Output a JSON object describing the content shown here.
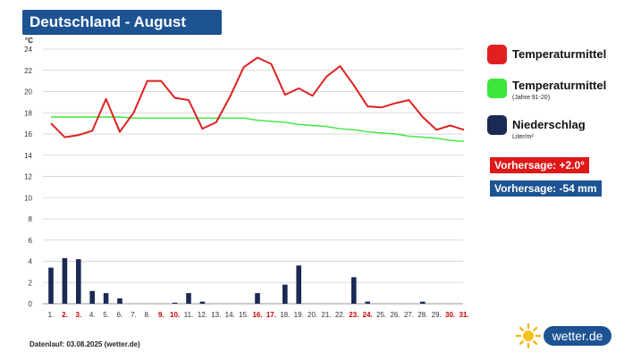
{
  "header": {
    "title": "Deutschland - August"
  },
  "legend": {
    "temp_label": "Temperaturmittel",
    "climate_label": "Temperaturmittel",
    "climate_sub": "(Jahre 91-20)",
    "precip_label": "Niederschlag",
    "precip_sub": "Liter/m²"
  },
  "forecast": {
    "temp": "Vorhersage: +2.0°",
    "precip": "Vorhersage: -54 mm"
  },
  "footer": {
    "text": "Datenlauf: 03.08.2025 (wetter.de)"
  },
  "brand": {
    "name": "wetter.de"
  },
  "colors": {
    "temperature": "#e02020",
    "climate": "#3be63b",
    "precip": "#1a2a55",
    "weekend": "#cc0000",
    "badge_temp": "#e01818",
    "badge_precip": "#1d5393"
  },
  "chart_data": {
    "type": "line",
    "ylabel": "°C",
    "ylim": [
      0,
      24
    ],
    "yticks": [
      0,
      2,
      4,
      6,
      8,
      10,
      12,
      14,
      16,
      18,
      20,
      22,
      24
    ],
    "grid": true,
    "categories": [
      "1.",
      "2.",
      "3.",
      "4.",
      "5.",
      "6.",
      "7.",
      "8.",
      "9.",
      "10.",
      "11.",
      "12.",
      "13.",
      "14.",
      "15.",
      "16.",
      "17.",
      "18.",
      "19.",
      "20.",
      "21.",
      "22.",
      "23.",
      "24.",
      "25.",
      "26.",
      "27.",
      "28.",
      "29.",
      "30.",
      "31."
    ],
    "weekend_days": [
      2,
      3,
      9,
      10,
      16,
      17,
      23,
      24,
      30,
      31
    ],
    "series": [
      {
        "name": "Temperaturmittel",
        "kind": "line",
        "values": [
          17.0,
          15.7,
          15.9,
          16.3,
          19.3,
          16.2,
          18.0,
          21.0,
          21.0,
          19.4,
          19.2,
          16.5,
          17.1,
          19.5,
          22.3,
          23.2,
          22.6,
          19.7,
          20.3,
          19.6,
          21.4,
          22.4,
          20.6,
          18.6,
          18.5,
          18.9,
          19.2,
          17.6,
          16.4,
          16.8,
          16.4
        ]
      },
      {
        "name": "Temperaturmittel (Jahre 91-20)",
        "kind": "line",
        "values": [
          17.6,
          17.6,
          17.6,
          17.6,
          17.6,
          17.6,
          17.5,
          17.5,
          17.5,
          17.5,
          17.5,
          17.5,
          17.5,
          17.5,
          17.5,
          17.3,
          17.2,
          17.1,
          16.9,
          16.8,
          16.7,
          16.5,
          16.4,
          16.2,
          16.1,
          16.0,
          15.8,
          15.7,
          15.6,
          15.4,
          15.3
        ]
      },
      {
        "name": "Niederschlag",
        "kind": "bar",
        "values": [
          3.4,
          4.3,
          4.2,
          1.2,
          1.0,
          0.5,
          0.0,
          0.0,
          0.0,
          0.1,
          1.0,
          0.2,
          0.0,
          0.0,
          0.0,
          1.0,
          0.0,
          1.8,
          3.6,
          0.0,
          0.0,
          0.0,
          2.5,
          0.2,
          0.0,
          0.0,
          0.0,
          0.2,
          0.0,
          0.0,
          0.0
        ]
      }
    ]
  }
}
